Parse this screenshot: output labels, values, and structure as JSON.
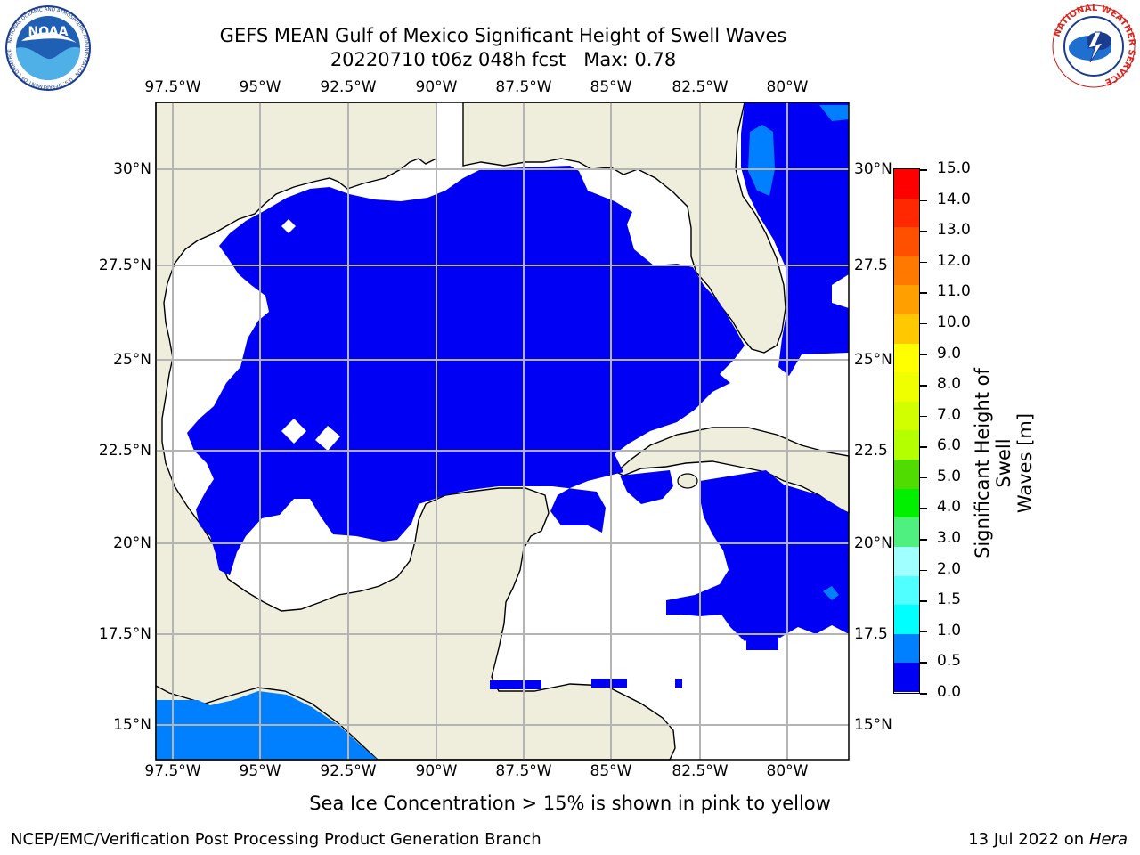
{
  "header": {
    "title": "GEFS MEAN Gulf of Mexico Significant Height of Swell Waves",
    "subtitle_run": "20220710 t06z 048h fcst",
    "subtitle_max": "Max: 0.78"
  },
  "logos": {
    "left": {
      "name": "NOAA",
      "ring_text": "NATIONAL OCEANIC AND ATMOSPHERIC ADMINISTRATION · U.S. DEPARTMENT OF COMMERCE"
    },
    "right": {
      "ring_text": "NATIONAL WEATHER SERVICE"
    }
  },
  "map": {
    "lon_labels": [
      "97.5°W",
      "95°W",
      "92.5°W",
      "90°W",
      "87.5°W",
      "85°W",
      "82.5°W",
      "80°W"
    ],
    "lat_labels_left": [
      "30°N",
      "27.5°N",
      "25°N",
      "22.5°N",
      "20°N",
      "17.5°N",
      "15°N"
    ],
    "lat_labels_right": [
      "30°N",
      "27.5",
      "25°N",
      "22.5",
      "20°N",
      "17.5",
      "15°N"
    ],
    "colors": {
      "land": "#efeedd",
      "swell_0_0_5": "#0000f5",
      "swell_0_5_1_0": "#0080ff",
      "grid": "#b4b4b4"
    }
  },
  "colorbar": {
    "label": "Significant Height of Swell Waves [m]",
    "label_line1": "Significant Height of Swell",
    "label_line2": "Waves [m]",
    "ticks": [
      "15.0",
      "14.0",
      "13.0",
      "12.0",
      "11.0",
      "10.0",
      "9.0",
      "8.0",
      "7.0",
      "6.0",
      "5.0",
      "4.0",
      "3.0",
      "2.0",
      "1.5",
      "1.0",
      "0.5",
      "0.0"
    ],
    "colors_top_to_bottom": [
      "#ff0000",
      "#ff2800",
      "#ff5000",
      "#ff7800",
      "#ffa000",
      "#ffc800",
      "#ffff00",
      "#f0ff00",
      "#d2ff00",
      "#b4ff00",
      "#50dc00",
      "#00f000",
      "#50f080",
      "#a0ffff",
      "#50ffff",
      "#00ffff",
      "#0080ff",
      "#0000f5"
    ]
  },
  "note": "Sea Ice Concentration > 15% is shown in pink to yellow",
  "footer": {
    "left": "NCEP/EMC/Verification Post Processing Product Generation Branch",
    "date": "13 Jul 2022 on ",
    "host": "Hera"
  }
}
